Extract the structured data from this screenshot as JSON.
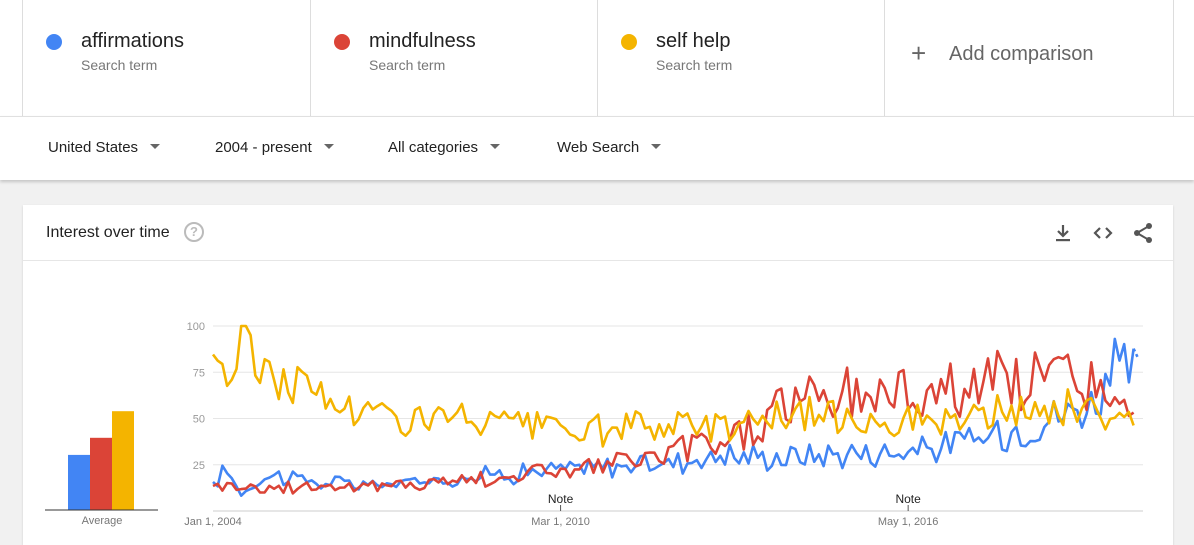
{
  "terms": [
    {
      "name": "affirmations",
      "sub": "Search term",
      "color": "#4285f4"
    },
    {
      "name": "mindfulness",
      "sub": "Search term",
      "color": "#db4437"
    },
    {
      "name": "self help",
      "sub": "Search term",
      "color": "#f4b400"
    }
  ],
  "add_comparison": {
    "label": "Add comparison",
    "icon": "plus-icon"
  },
  "filters": {
    "region": "United States",
    "time": "2004 - present",
    "category": "All categories",
    "search_type": "Web Search"
  },
  "card": {
    "title": "Interest over time",
    "help_glyph": "?",
    "tools": [
      "download-icon",
      "embed-code-icon",
      "share-icon"
    ]
  },
  "chart_data": {
    "type": "line",
    "x_start": "2004-01",
    "x_end": "2020-06",
    "ylim": [
      0,
      100
    ],
    "yticks": [
      25,
      50,
      75,
      100
    ],
    "xtick_labels": [
      "Jan 1, 2004",
      "Mar 1, 2010",
      "May 1, 2016"
    ],
    "notes": [
      {
        "label": "Note",
        "date": "2010-03"
      },
      {
        "label": "Note",
        "date": "2016-05"
      }
    ],
    "series": [
      {
        "name": "affirmations",
        "color": "#4285f4",
        "keyframes": [
          [
            2004.0,
            12
          ],
          [
            2004.2,
            24
          ],
          [
            2004.5,
            10
          ],
          [
            2005.0,
            20
          ],
          [
            2006.0,
            15
          ],
          [
            2007.0,
            14
          ],
          [
            2008.0,
            17
          ],
          [
            2009.0,
            20
          ],
          [
            2010.0,
            22
          ],
          [
            2011.0,
            24
          ],
          [
            2012.0,
            26
          ],
          [
            2013.0,
            30
          ],
          [
            2014.0,
            29
          ],
          [
            2015.0,
            31
          ],
          [
            2016.0,
            32
          ],
          [
            2017.0,
            35
          ],
          [
            2018.0,
            42
          ],
          [
            2019.0,
            52
          ],
          [
            2019.6,
            58
          ],
          [
            2020.0,
            78
          ],
          [
            2020.3,
            72
          ]
        ],
        "partial_end": 82
      },
      {
        "name": "mindfulness",
        "color": "#db4437",
        "keyframes": [
          [
            2004.0,
            15
          ],
          [
            2005.0,
            12
          ],
          [
            2006.0,
            14
          ],
          [
            2007.0,
            13
          ],
          [
            2008.0,
            16
          ],
          [
            2009.0,
            18
          ],
          [
            2010.0,
            22
          ],
          [
            2011.0,
            25
          ],
          [
            2012.0,
            30
          ],
          [
            2013.0,
            38
          ],
          [
            2013.8,
            47
          ],
          [
            2014.0,
            58
          ],
          [
            2015.0,
            62
          ],
          [
            2016.0,
            64
          ],
          [
            2017.0,
            66
          ],
          [
            2018.0,
            70
          ],
          [
            2019.0,
            72
          ],
          [
            2019.6,
            70
          ],
          [
            2020.0,
            55
          ],
          [
            2020.4,
            48
          ]
        ]
      },
      {
        "name": "self help",
        "color": "#f4b400",
        "keyframes": [
          [
            2004.0,
            88
          ],
          [
            2004.3,
            72
          ],
          [
            2004.6,
            95
          ],
          [
            2005.0,
            72
          ],
          [
            2005.5,
            70
          ],
          [
            2006.0,
            60
          ],
          [
            2007.0,
            52
          ],
          [
            2008.0,
            50
          ],
          [
            2009.0,
            48
          ],
          [
            2010.0,
            45
          ],
          [
            2011.0,
            43
          ],
          [
            2012.0,
            46
          ],
          [
            2013.0,
            47
          ],
          [
            2014.0,
            52
          ],
          [
            2015.0,
            51
          ],
          [
            2016.0,
            50
          ],
          [
            2017.0,
            48
          ],
          [
            2018.0,
            52
          ],
          [
            2019.0,
            55
          ],
          [
            2019.6,
            54
          ],
          [
            2020.0,
            50
          ],
          [
            2020.4,
            46
          ]
        ]
      }
    ],
    "averages": [
      {
        "name": "affirmations",
        "value": 29,
        "color": "#4285f4"
      },
      {
        "name": "mindfulness",
        "value": 38,
        "color": "#db4437"
      },
      {
        "name": "self help",
        "value": 52,
        "color": "#f4b400"
      }
    ],
    "average_label": "Average"
  }
}
